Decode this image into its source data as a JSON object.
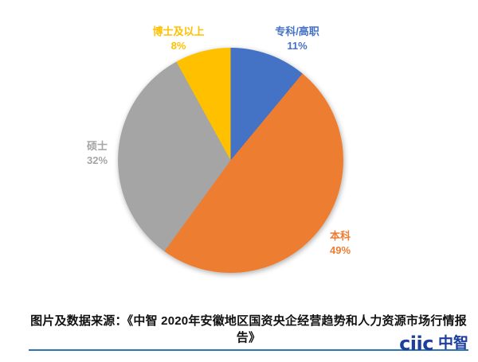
{
  "chart_data": {
    "type": "pie",
    "title": "",
    "start_angle_deg": 0,
    "direction": "clockwise",
    "legend_position": "none",
    "labels_position": "outside",
    "slices": [
      {
        "label": "专科/高职",
        "value": 11,
        "pct_label": "11%",
        "color": "#4472C4"
      },
      {
        "label": "本科",
        "value": 49,
        "pct_label": "49%",
        "color": "#ED7D31"
      },
      {
        "label": "硕士",
        "value": 32,
        "pct_label": "32%",
        "color": "#A5A5A5"
      },
      {
        "label": "博士及以上",
        "value": 8,
        "pct_label": "8%",
        "color": "#FFC000"
      }
    ]
  },
  "caption": {
    "text": "图片及数据来源：《中智 2020年安徽地区国资央企经营趋势和人力资源市场行情报告》",
    "underline_color": "#2E75B6"
  },
  "logo": {
    "latin": "ciic",
    "cjk": "中智",
    "color": "#1C3F9C"
  }
}
